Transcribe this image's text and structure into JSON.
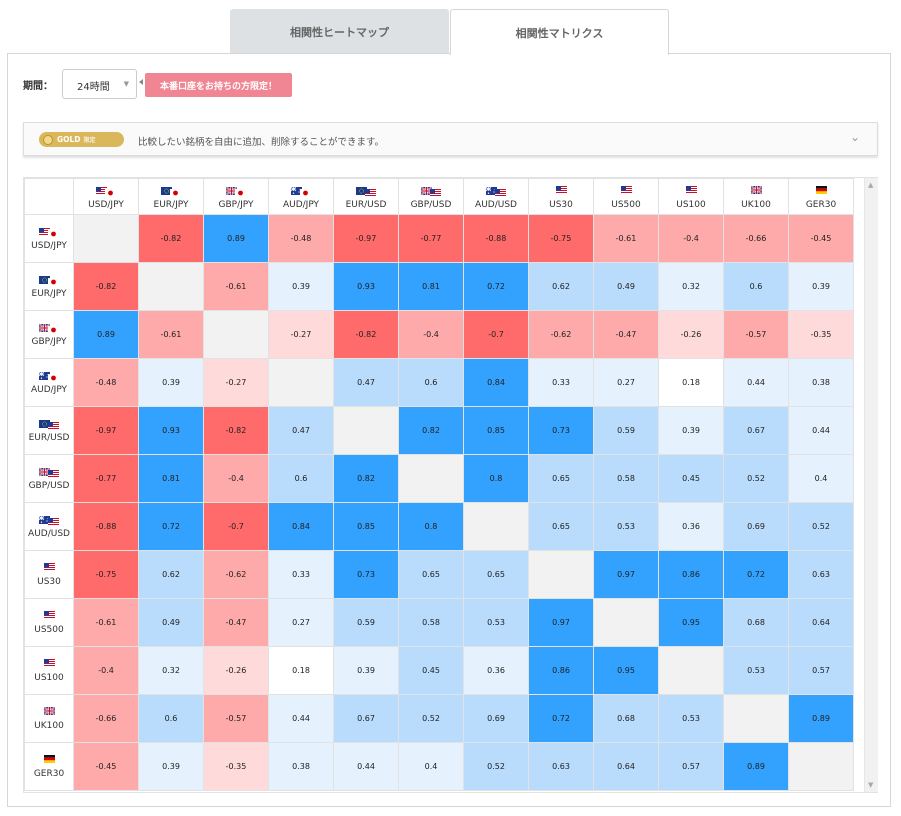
{
  "tabs": [
    {
      "label": "相関性ヒートマップ",
      "active": false
    },
    {
      "label": "相関性マトリクス",
      "active": true
    }
  ],
  "period": {
    "label": "期間：",
    "value": "24時間"
  },
  "promo": "本番口座をお持ちの方限定！",
  "gold": {
    "badge": "GOLD",
    "badge_sub": "限定",
    "text": "比較したい銘柄を自由に追加、削除することができます。"
  },
  "colors": {
    "strong_neg": "#ff6b6b",
    "mid_neg": "#ffaaaa",
    "weak_neg": "#ffdada",
    "strong_pos": "#33a2ff",
    "mid_pos": "#b9dcfc",
    "weak_pos": "#e5f2fd",
    "neutral": "#ffffff",
    "self": "#f2f2f2"
  },
  "instruments": [
    {
      "label": "USD/JPY",
      "flags": [
        "us",
        "jp"
      ]
    },
    {
      "label": "EUR/JPY",
      "flags": [
        "eu",
        "jp"
      ]
    },
    {
      "label": "GBP/JPY",
      "flags": [
        "gb",
        "jp"
      ]
    },
    {
      "label": "AUD/JPY",
      "flags": [
        "au",
        "jp"
      ]
    },
    {
      "label": "EUR/USD",
      "flags": [
        "eu",
        "us"
      ]
    },
    {
      "label": "GBP/USD",
      "flags": [
        "gb",
        "us"
      ]
    },
    {
      "label": "AUD/USD",
      "flags": [
        "au",
        "us"
      ]
    },
    {
      "label": "US30",
      "flags": [
        "us"
      ]
    },
    {
      "label": "US500",
      "flags": [
        "us"
      ]
    },
    {
      "label": "US100",
      "flags": [
        "us"
      ]
    },
    {
      "label": "UK100",
      "flags": [
        "gb"
      ]
    },
    {
      "label": "GER30",
      "flags": [
        "de"
      ]
    }
  ],
  "matrix": [
    [
      null,
      -0.82,
      0.89,
      -0.48,
      -0.97,
      -0.77,
      -0.88,
      -0.75,
      -0.61,
      -0.4,
      -0.66,
      -0.45
    ],
    [
      -0.82,
      null,
      -0.61,
      0.39,
      0.93,
      0.81,
      0.72,
      0.62,
      0.49,
      0.32,
      0.6,
      0.39
    ],
    [
      0.89,
      -0.61,
      null,
      -0.27,
      -0.82,
      -0.4,
      -0.7,
      -0.62,
      -0.47,
      -0.26,
      -0.57,
      -0.35
    ],
    [
      -0.48,
      0.39,
      -0.27,
      null,
      0.47,
      0.6,
      0.84,
      0.33,
      0.27,
      0.18,
      0.44,
      0.38
    ],
    [
      -0.97,
      0.93,
      -0.82,
      0.47,
      null,
      0.82,
      0.85,
      0.73,
      0.59,
      0.39,
      0.67,
      0.44
    ],
    [
      -0.77,
      0.81,
      -0.4,
      0.6,
      0.82,
      null,
      0.8,
      0.65,
      0.58,
      0.45,
      0.52,
      0.4
    ],
    [
      -0.88,
      0.72,
      -0.7,
      0.84,
      0.85,
      0.8,
      null,
      0.65,
      0.53,
      0.36,
      0.69,
      0.52
    ],
    [
      -0.75,
      0.62,
      -0.62,
      0.33,
      0.73,
      0.65,
      0.65,
      null,
      0.97,
      0.86,
      0.72,
      0.63
    ],
    [
      -0.61,
      0.49,
      -0.47,
      0.27,
      0.59,
      0.58,
      0.53,
      0.97,
      null,
      0.95,
      0.68,
      0.64
    ],
    [
      -0.4,
      0.32,
      -0.26,
      0.18,
      0.39,
      0.45,
      0.36,
      0.86,
      0.95,
      null,
      0.53,
      0.57
    ],
    [
      -0.66,
      0.6,
      -0.57,
      0.44,
      0.67,
      0.52,
      0.69,
      0.72,
      0.68,
      0.53,
      null,
      0.89
    ],
    [
      -0.45,
      0.39,
      -0.35,
      0.38,
      0.44,
      0.4,
      0.52,
      0.63,
      0.64,
      0.57,
      0.89,
      null
    ]
  ]
}
